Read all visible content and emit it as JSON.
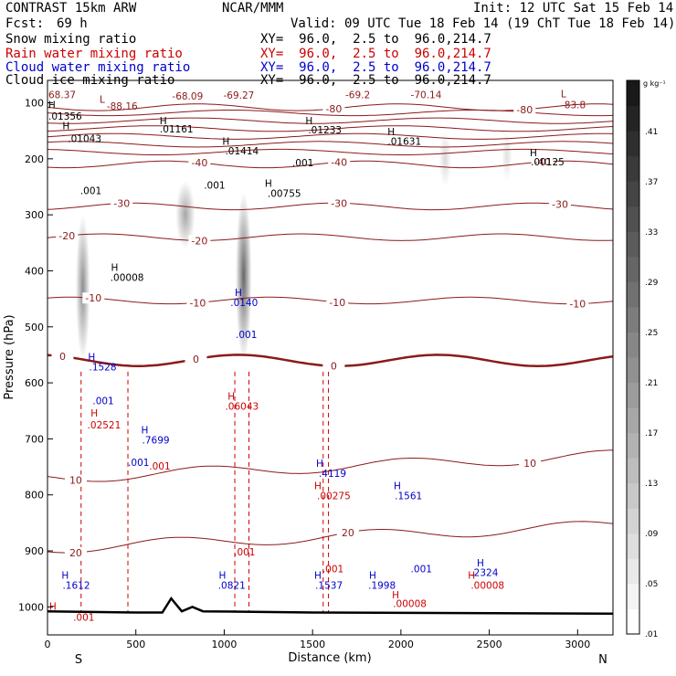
{
  "header": {
    "model": "CONTRAST 15km ARW",
    "center": "NCAR/MMM",
    "init": "Init: 12 UTC Sat 15 Feb 14",
    "fcst_label": "Fcst:",
    "fcst_value": "69 h",
    "valid": "Valid: 09 UTC Tue 18 Feb 14 (19 ChT Tue 18 Feb 14)",
    "fields": [
      {
        "name": "Snow mixing ratio",
        "xy": "XY=  96.0,  2.5 to  96.0,214.7",
        "color": "#000000"
      },
      {
        "name": "Rain water mixing ratio",
        "xy": "XY=  96.0,  2.5 to  96.0,214.7",
        "color": "#cc0000"
      },
      {
        "name": "Cloud water mixing ratio",
        "xy": "XY=  96.0,  2.5 to  96.0,214.7",
        "color": "#0000cc"
      },
      {
        "name": "Cloud ice mixing ratio",
        "xy": "XY=  96.0,  2.5 to  96.0,214.7",
        "color": "#000000"
      }
    ]
  },
  "chart_data": {
    "type": "cross-section contour",
    "xlabel": "Distance (km)",
    "ylabel": "Pressure (hPa)",
    "xlim": [
      0,
      3200
    ],
    "ylim": [
      1050,
      60
    ],
    "x_ticks": [
      0,
      500,
      1000,
      1500,
      2000,
      2500,
      3000
    ],
    "y_ticks": [
      100,
      200,
      300,
      400,
      500,
      600,
      700,
      800,
      900,
      1000
    ],
    "end_labels": {
      "left": "S",
      "right": "N"
    },
    "colorbar": {
      "unit": "g kg⁻¹",
      "labels": [
        ".41",
        ".37",
        ".33",
        ".29",
        ".25",
        ".21",
        ".17",
        ".13",
        ".09",
        ".05",
        ".01"
      ],
      "range": [
        0.01,
        0.45
      ]
    },
    "temperature_contours": {
      "color": "#8b1a1a",
      "levels": [
        {
          "label": "-80",
          "p": 108,
          "labels_at": [
            1620,
            2700
          ]
        },
        {
          "label": "-40",
          "p": 210,
          "labels_at": [
            860,
            1650,
            2800
          ]
        },
        {
          "label": "-30",
          "p": 285,
          "labels_at": [
            420,
            1650,
            2900
          ]
        },
        {
          "label": "-20",
          "p": 340,
          "labels_at": [
            110,
            860
          ]
        },
        {
          "label": "-10",
          "p": 453,
          "labels_at": [
            260,
            850,
            1640,
            3000
          ]
        },
        {
          "label": "0",
          "p": 560,
          "labels_at": [
            85,
            840,
            1620
          ]
        },
        {
          "label": "10",
          "p": 770,
          "labels_at": [
            160,
            2730
          ]
        },
        {
          "label": "20",
          "p": 895,
          "labels_at": [
            160,
            1700
          ]
        }
      ]
    },
    "maxima_labels": [
      {
        "text": "68.37",
        "x": 0,
        "p": 92,
        "color": "#8b1a1a"
      },
      {
        "text": "-68.09",
        "x": 700,
        "p": 94,
        "color": "#8b1a1a"
      },
      {
        "text": "-69.27",
        "x": 990,
        "p": 93,
        "color": "#8b1a1a"
      },
      {
        "text": "-69.2",
        "x": 1680,
        "p": 92,
        "color": "#8b1a1a"
      },
      {
        "text": "-70.14",
        "x": 2050,
        "p": 92,
        "color": "#8b1a1a"
      },
      {
        "text": "-83.8",
        "x": 2900,
        "p": 110,
        "color": "#8b1a1a"
      },
      {
        "text": "-88.16",
        "x": 330,
        "p": 112,
        "color": "#8b1a1a"
      },
      {
        "text": ".01356",
        "x": 0,
        "p": 130,
        "color": "#000000"
      },
      {
        "text": ".01043",
        "x": 110,
        "p": 170,
        "color": "#000000"
      },
      {
        "text": ".01161",
        "x": 630,
        "p": 153,
        "color": "#000000"
      },
      {
        "text": ".01414",
        "x": 1000,
        "p": 192,
        "color": "#000000"
      },
      {
        "text": ".01233",
        "x": 1470,
        "p": 155,
        "color": "#000000"
      },
      {
        "text": ".01631",
        "x": 1920,
        "p": 175,
        "color": "#000000"
      },
      {
        "text": ".00125",
        "x": 2730,
        "p": 212,
        "color": "#000000"
      },
      {
        "text": ".001",
        "x": 180,
        "p": 263,
        "color": "#000000"
      },
      {
        "text": ".001",
        "x": 880,
        "p": 253,
        "color": "#000000"
      },
      {
        "text": ".00755",
        "x": 1240,
        "p": 268,
        "color": "#000000"
      },
      {
        "text": ".001",
        "x": 1380,
        "p": 213,
        "color": "#000000"
      },
      {
        "text": ".00008",
        "x": 350,
        "p": 418,
        "color": "#000000"
      },
      {
        "text": ".0140",
        "x": 1030,
        "p": 463,
        "color": "#0000cc"
      },
      {
        "text": ".001",
        "x": 1060,
        "p": 520,
        "color": "#0000cc"
      },
      {
        "text": ".1528",
        "x": 230,
        "p": 578,
        "color": "#0000cc"
      },
      {
        "text": ".001",
        "x": 250,
        "p": 638,
        "color": "#0000cc"
      },
      {
        "text": ".02521",
        "x": 220,
        "p": 681,
        "color": "#cc0000"
      },
      {
        "text": ".06043",
        "x": 1000,
        "p": 648,
        "color": "#cc0000"
      },
      {
        "text": ".7699",
        "x": 530,
        "p": 708,
        "color": "#0000cc"
      },
      {
        "text": ".001",
        "x": 450,
        "p": 748,
        "color": "#0000cc"
      },
      {
        "text": ".001",
        "x": 570,
        "p": 755,
        "color": "#cc0000"
      },
      {
        "text": ".4119",
        "x": 1530,
        "p": 768,
        "color": "#0000cc"
      },
      {
        "text": ".00275",
        "x": 1520,
        "p": 808,
        "color": "#cc0000"
      },
      {
        "text": ".1561",
        "x": 1960,
        "p": 808,
        "color": "#0000cc"
      },
      {
        "text": ".001",
        "x": 1050,
        "p": 908,
        "color": "#cc0000"
      },
      {
        "text": ".001",
        "x": 1550,
        "p": 938,
        "color": "#cc0000"
      },
      {
        "text": ".001",
        "x": 2050,
        "p": 938,
        "color": "#0000cc"
      },
      {
        "text": ".1612",
        "x": 80,
        "p": 968,
        "color": "#0000cc"
      },
      {
        "text": ".0821",
        "x": 960,
        "p": 968,
        "color": "#0000cc"
      },
      {
        "text": ".1537",
        "x": 1510,
        "p": 968,
        "color": "#0000cc"
      },
      {
        "text": ".1998",
        "x": 1810,
        "p": 968,
        "color": "#0000cc"
      },
      {
        "text": ".00008",
        "x": 1950,
        "p": 1000,
        "color": "#cc0000"
      },
      {
        "text": ".2324",
        "x": 2390,
        "p": 945,
        "color": "#0000cc"
      },
      {
        "text": ".00008",
        "x": 2390,
        "p": 968,
        "color": "#cc0000"
      },
      {
        "text": ".001",
        "x": 140,
        "p": 1025,
        "color": "#cc0000"
      }
    ],
    "h_markers": [
      {
        "x": 25,
        "p": 110,
        "color": "#000"
      },
      {
        "x": 105,
        "p": 147,
        "color": "#000"
      },
      {
        "x": 655,
        "p": 138,
        "color": "#000"
      },
      {
        "x": 1010,
        "p": 175,
        "color": "#000"
      },
      {
        "x": 1480,
        "p": 138,
        "color": "#000"
      },
      {
        "x": 1945,
        "p": 158,
        "color": "#000"
      },
      {
        "x": 2750,
        "p": 195,
        "color": "#000"
      },
      {
        "x": 1250,
        "p": 250,
        "color": "#000"
      },
      {
        "x": 380,
        "p": 400,
        "color": "#000"
      },
      {
        "x": 1080,
        "p": 445,
        "color": "#0000cc"
      },
      {
        "x": 250,
        "p": 560,
        "color": "#0000cc"
      },
      {
        "x": 265,
        "p": 660,
        "color": "#cc0000"
      },
      {
        "x": 1040,
        "p": 630,
        "color": "#cc0000"
      },
      {
        "x": 550,
        "p": 690,
        "color": "#0000cc"
      },
      {
        "x": 1540,
        "p": 750,
        "color": "#0000cc"
      },
      {
        "x": 1530,
        "p": 790,
        "color": "#cc0000"
      },
      {
        "x": 1980,
        "p": 790,
        "color": "#0000cc"
      },
      {
        "x": 100,
        "p": 950,
        "color": "#0000cc"
      },
      {
        "x": 990,
        "p": 950,
        "color": "#0000cc"
      },
      {
        "x": 1530,
        "p": 950,
        "color": "#0000cc"
      },
      {
        "x": 1840,
        "p": 950,
        "color": "#0000cc"
      },
      {
        "x": 1970,
        "p": 985,
        "color": "#cc0000"
      },
      {
        "x": 2450,
        "p": 928,
        "color": "#0000cc"
      },
      {
        "x": 2400,
        "p": 950,
        "color": "#cc0000"
      },
      {
        "x": 30,
        "p": 1005,
        "color": "#cc0000"
      }
    ],
    "l_markers": [
      {
        "x": 310,
        "p": 100
      },
      {
        "x": 2920,
        "p": 90
      }
    ],
    "snow_shading": [
      {
        "x": 200,
        "p_top": 300,
        "p_bot": 560,
        "width": 80,
        "intensity": 0.45
      },
      {
        "x": 780,
        "p_top": 240,
        "p_bot": 360,
        "width": 110,
        "intensity": 0.35
      },
      {
        "x": 1110,
        "p_top": 260,
        "p_bot": 560,
        "width": 90,
        "intensity": 0.6
      },
      {
        "x": 2250,
        "p_top": 150,
        "p_bot": 250,
        "width": 70,
        "intensity": 0.15
      },
      {
        "x": 2600,
        "p_top": 150,
        "p_bot": 240,
        "width": 60,
        "intensity": 0.12
      }
    ],
    "rain_dashes": [
      190,
      455,
      1060,
      1140,
      1560,
      1590
    ],
    "terrain": [
      [
        0,
        1008
      ],
      [
        500,
        1010
      ],
      [
        650,
        1010
      ],
      [
        700,
        985
      ],
      [
        760,
        1008
      ],
      [
        820,
        1000
      ],
      [
        880,
        1008
      ],
      [
        1500,
        1010
      ],
      [
        3200,
        1012
      ]
    ]
  }
}
